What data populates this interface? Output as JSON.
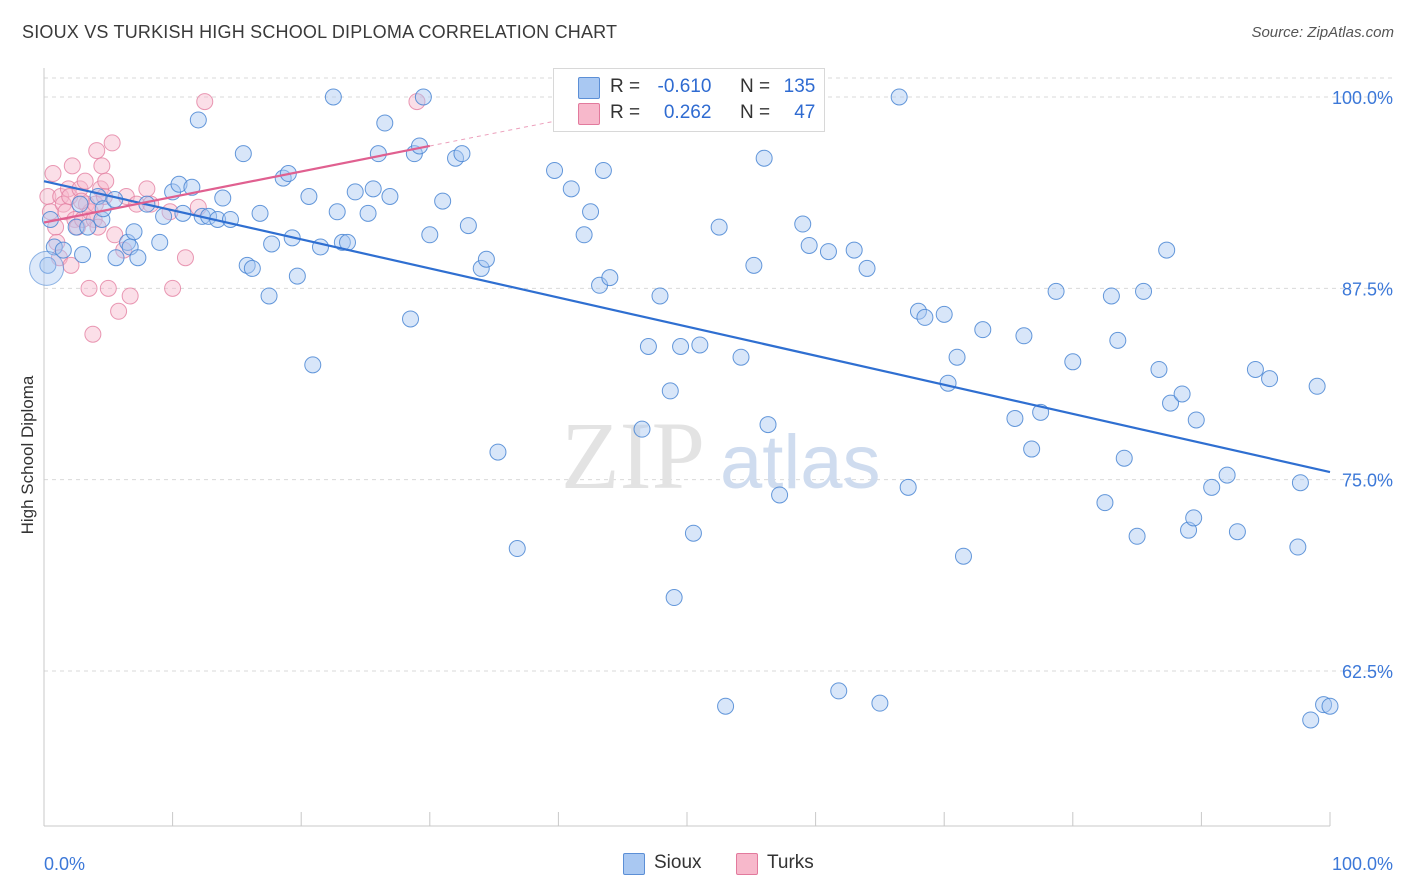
{
  "title": "SIOUX VS TURKISH HIGH SCHOOL DIPLOMA CORRELATION CHART",
  "source": "Source: ZipAtlas.com",
  "watermark": {
    "part1": "ZIP",
    "part2": "atlas"
  },
  "legend": {
    "r_label": "R =",
    "n_label": "N =",
    "rows": [
      {
        "name": "Sioux",
        "r": "-0.610",
        "n": "135",
        "color": "#a9c8f2",
        "border": "#5c8fd6"
      },
      {
        "name": "Turks",
        "r": "0.262",
        "n": "47",
        "color": "#f7b8cb",
        "border": "#e27a9d"
      }
    ]
  },
  "colors": {
    "sioux_fill": "#a9c8f2",
    "sioux_stroke": "#4a86d4",
    "sioux_line": "#2f6fd1",
    "turks_fill": "#f7b8cb",
    "turks_stroke": "#e47fa1",
    "turks_line": "#e06090",
    "tick_label": "#3c78d8",
    "grid": "#d9d9d9"
  },
  "chart_data": {
    "type": "scatter",
    "title": "SIOUX VS TURKISH HIGH SCHOOL DIPLOMA CORRELATION CHART",
    "xlabel": "",
    "ylabel": "High School Diploma",
    "xlim": [
      0,
      100
    ],
    "ylim": [
      51,
      102
    ],
    "x_tick_labels": [
      "0.0%",
      "100.0%"
    ],
    "y_ticks": [
      62.5,
      75.0,
      87.5,
      100.0
    ],
    "y_tick_labels": [
      "62.5%",
      "75.0%",
      "87.5%",
      "100.0%"
    ],
    "grid": "horizontal dashed",
    "legend_position": "top-center",
    "series": [
      {
        "name": "Sioux",
        "trend": {
          "x": [
            0,
            100
          ],
          "y": [
            94.5,
            75.5
          ]
        },
        "points": [
          [
            0.3,
            89.0
          ],
          [
            0.8,
            90.2
          ],
          [
            1.5,
            90.0
          ],
          [
            2.5,
            91.5
          ],
          [
            2.8,
            93.0
          ],
          [
            3.0,
            89.7
          ],
          [
            3.4,
            91.5
          ],
          [
            4.2,
            93.5
          ],
          [
            4.5,
            92.0
          ],
          [
            4.6,
            92.7
          ],
          [
            5.5,
            93.3
          ],
          [
            5.6,
            89.5
          ],
          [
            6.5,
            90.5
          ],
          [
            6.7,
            90.2
          ],
          [
            7.0,
            91.2
          ],
          [
            7.3,
            89.5
          ],
          [
            8.0,
            93.0
          ],
          [
            9.0,
            90.5
          ],
          [
            9.3,
            92.2
          ],
          [
            10.0,
            93.8
          ],
          [
            10.5,
            94.3
          ],
          [
            10.8,
            92.4
          ],
          [
            11.5,
            94.1
          ],
          [
            12.0,
            98.5
          ],
          [
            12.3,
            92.2
          ],
          [
            12.8,
            92.2
          ],
          [
            13.5,
            92.0
          ],
          [
            13.9,
            93.4
          ],
          [
            14.5,
            92.0
          ],
          [
            15.5,
            96.3
          ],
          [
            15.8,
            89.0
          ],
          [
            16.2,
            88.8
          ],
          [
            16.8,
            92.4
          ],
          [
            17.5,
            87.0
          ],
          [
            17.7,
            90.4
          ],
          [
            18.6,
            94.7
          ],
          [
            19.0,
            95.0
          ],
          [
            19.3,
            90.8
          ],
          [
            19.7,
            88.3
          ],
          [
            20.6,
            93.5
          ],
          [
            20.9,
            82.5
          ],
          [
            21.5,
            90.2
          ],
          [
            22.5,
            100.0
          ],
          [
            22.8,
            92.5
          ],
          [
            23.2,
            90.5
          ],
          [
            23.6,
            90.5
          ],
          [
            24.2,
            93.8
          ],
          [
            25.2,
            92.4
          ],
          [
            25.6,
            94.0
          ],
          [
            26.0,
            96.3
          ],
          [
            26.5,
            98.3
          ],
          [
            26.9,
            93.5
          ],
          [
            28.5,
            85.5
          ],
          [
            28.8,
            96.3
          ],
          [
            29.2,
            96.8
          ],
          [
            29.5,
            100.0
          ],
          [
            30.0,
            91.0
          ],
          [
            31.0,
            93.2
          ],
          [
            32.0,
            96.0
          ],
          [
            32.5,
            96.3
          ],
          [
            33.0,
            91.6
          ],
          [
            34.0,
            88.8
          ],
          [
            34.4,
            89.4
          ],
          [
            35.3,
            76.8
          ],
          [
            36.8,
            70.5
          ],
          [
            39.7,
            95.2
          ],
          [
            41.0,
            94.0
          ],
          [
            42.0,
            91.0
          ],
          [
            42.5,
            92.5
          ],
          [
            43.2,
            87.7
          ],
          [
            43.5,
            95.2
          ],
          [
            44.0,
            88.2
          ],
          [
            45.0,
            100.0
          ],
          [
            46.5,
            78.3
          ],
          [
            47.0,
            83.7
          ],
          [
            47.9,
            87.0
          ],
          [
            48.7,
            80.8
          ],
          [
            49.0,
            67.3
          ],
          [
            49.5,
            83.7
          ],
          [
            50.5,
            71.5
          ],
          [
            51.0,
            83.8
          ],
          [
            52.5,
            91.5
          ],
          [
            53.0,
            60.2
          ],
          [
            54.2,
            83.0
          ],
          [
            55.2,
            89.0
          ],
          [
            56.0,
            96.0
          ],
          [
            56.3,
            78.6
          ],
          [
            57.2,
            74.0
          ],
          [
            59.0,
            91.7
          ],
          [
            59.5,
            90.3
          ],
          [
            61.0,
            89.9
          ],
          [
            61.8,
            61.2
          ],
          [
            63.0,
            90.0
          ],
          [
            64.0,
            88.8
          ],
          [
            65.0,
            60.4
          ],
          [
            66.5,
            100.0
          ],
          [
            67.2,
            74.5
          ],
          [
            68.0,
            86.0
          ],
          [
            68.5,
            85.6
          ],
          [
            70.0,
            85.8
          ],
          [
            70.3,
            81.3
          ],
          [
            71.0,
            83.0
          ],
          [
            71.5,
            70.0
          ],
          [
            73.0,
            84.8
          ],
          [
            75.5,
            79.0
          ],
          [
            76.2,
            84.4
          ],
          [
            76.8,
            77.0
          ],
          [
            77.5,
            79.4
          ],
          [
            78.7,
            87.3
          ],
          [
            80.0,
            82.7
          ],
          [
            82.5,
            73.5
          ],
          [
            83.0,
            87.0
          ],
          [
            83.5,
            84.1
          ],
          [
            84.0,
            76.4
          ],
          [
            85.0,
            71.3
          ],
          [
            85.5,
            87.3
          ],
          [
            86.7,
            82.2
          ],
          [
            87.3,
            90.0
          ],
          [
            87.6,
            80.0
          ],
          [
            88.5,
            80.6
          ],
          [
            89.0,
            71.7
          ],
          [
            89.4,
            72.5
          ],
          [
            89.6,
            78.9
          ],
          [
            90.8,
            74.5
          ],
          [
            92.0,
            75.3
          ],
          [
            92.8,
            71.6
          ],
          [
            94.2,
            82.2
          ],
          [
            95.3,
            81.6
          ],
          [
            97.5,
            70.6
          ],
          [
            97.7,
            74.8
          ],
          [
            98.5,
            59.3
          ],
          [
            99.0,
            81.1
          ],
          [
            99.5,
            60.3
          ],
          [
            100.0,
            60.2
          ],
          [
            0.5,
            92.0
          ]
        ]
      },
      {
        "name": "Turks",
        "trend": {
          "x": [
            0,
            30
          ],
          "y": [
            91.8,
            96.8
          ]
        },
        "points": [
          [
            0.3,
            93.5
          ],
          [
            0.5,
            92.5
          ],
          [
            0.7,
            95.0
          ],
          [
            0.9,
            91.5
          ],
          [
            1.0,
            90.5
          ],
          [
            1.2,
            89.5
          ],
          [
            1.3,
            93.5
          ],
          [
            1.5,
            93.0
          ],
          [
            1.7,
            92.5
          ],
          [
            1.9,
            94.0
          ],
          [
            2.0,
            93.5
          ],
          [
            2.1,
            89.0
          ],
          [
            2.2,
            95.5
          ],
          [
            2.4,
            92.0
          ],
          [
            2.6,
            91.5
          ],
          [
            2.8,
            94.0
          ],
          [
            3.0,
            92.0
          ],
          [
            3.2,
            94.5
          ],
          [
            3.3,
            93.0
          ],
          [
            3.5,
            87.5
          ],
          [
            3.6,
            92.5
          ],
          [
            3.8,
            84.5
          ],
          [
            3.9,
            92.0
          ],
          [
            4.0,
            93.0
          ],
          [
            4.1,
            96.5
          ],
          [
            4.2,
            91.5
          ],
          [
            4.4,
            94.0
          ],
          [
            4.5,
            95.5
          ],
          [
            4.7,
            93.5
          ],
          [
            4.8,
            94.5
          ],
          [
            5.0,
            87.5
          ],
          [
            5.3,
            97.0
          ],
          [
            5.5,
            91.0
          ],
          [
            5.8,
            86.0
          ],
          [
            6.2,
            90.0
          ],
          [
            6.4,
            93.5
          ],
          [
            6.7,
            87.0
          ],
          [
            7.2,
            93.0
          ],
          [
            8.0,
            94.0
          ],
          [
            8.3,
            93.0
          ],
          [
            9.8,
            92.5
          ],
          [
            10.0,
            87.5
          ],
          [
            11.0,
            89.5
          ],
          [
            12.0,
            92.8
          ],
          [
            12.5,
            99.7
          ],
          [
            29.0,
            99.7
          ],
          [
            2.9,
            93.2
          ]
        ]
      }
    ]
  },
  "bottom_legend": [
    "Sioux",
    "Turks"
  ]
}
